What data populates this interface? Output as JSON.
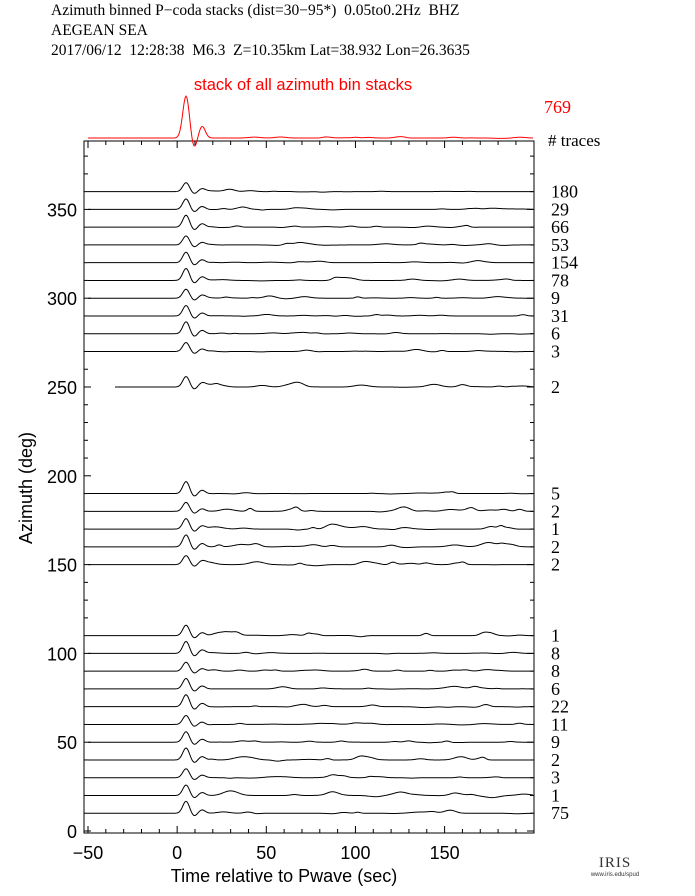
{
  "header": {
    "line1": "Azimuth binned P−coda stacks (dist=30−95*)  0.05to0.2Hz  BHZ",
    "line2": "AEGEAN SEA",
    "line3": "2017/06/12  12:28:38  M6.3  Z=10.35km Lat=38.932 Lon=26.3635"
  },
  "logo": {
    "text": "IRIS",
    "subtext": "www.iris.edu/spud"
  },
  "colors": {
    "stack": "#ff0000",
    "trace": "#000000",
    "axis": "#000000"
  },
  "chart_data": {
    "type": "line",
    "title": "stack of all azimuth bin stacks",
    "xlabel": "Time relative to Pwave (sec)",
    "ylabel": "Azimuth (deg)",
    "xlim": [
      -50,
      195
    ],
    "ylim": [
      0,
      385
    ],
    "xticks": [
      -50,
      0,
      50,
      100,
      150
    ],
    "yticks": [
      0,
      50,
      100,
      150,
      200,
      250,
      300,
      350
    ],
    "ntraces_label": "# traces",
    "total_traces": "769",
    "stack_trace_start": -50,
    "traces": [
      {
        "azimuth": 360,
        "count": "180",
        "start": -50
      },
      {
        "azimuth": 350,
        "count": "29",
        "start": -50
      },
      {
        "azimuth": 340,
        "count": "66",
        "start": -50
      },
      {
        "azimuth": 330,
        "count": "53",
        "start": -50
      },
      {
        "azimuth": 320,
        "count": "154",
        "start": -50
      },
      {
        "azimuth": 310,
        "count": "78",
        "start": -50
      },
      {
        "azimuth": 300,
        "count": "9",
        "start": -50
      },
      {
        "azimuth": 290,
        "count": "31",
        "start": -50
      },
      {
        "azimuth": 280,
        "count": "6",
        "start": -50
      },
      {
        "azimuth": 270,
        "count": "3",
        "start": -50
      },
      {
        "azimuth": 250,
        "count": "2",
        "start": -35
      },
      {
        "azimuth": 190,
        "count": "5",
        "start": -50
      },
      {
        "azimuth": 180,
        "count": "2",
        "start": -50
      },
      {
        "azimuth": 170,
        "count": "1",
        "start": -50
      },
      {
        "azimuth": 160,
        "count": "2",
        "start": -50
      },
      {
        "azimuth": 150,
        "count": "2",
        "start": -50
      },
      {
        "azimuth": 110,
        "count": "1",
        "start": -50
      },
      {
        "azimuth": 100,
        "count": "8",
        "start": -50
      },
      {
        "azimuth": 90,
        "count": "8",
        "start": -50
      },
      {
        "azimuth": 80,
        "count": "6",
        "start": -50
      },
      {
        "azimuth": 70,
        "count": "22",
        "start": -50
      },
      {
        "azimuth": 60,
        "count": "11",
        "start": -50
      },
      {
        "azimuth": 50,
        "count": "9",
        "start": -50
      },
      {
        "azimuth": 40,
        "count": "2",
        "start": -50
      },
      {
        "azimuth": 30,
        "count": "3",
        "start": -50
      },
      {
        "azimuth": 20,
        "count": "1",
        "start": -50
      },
      {
        "azimuth": 10,
        "count": "75",
        "start": -50
      }
    ]
  }
}
